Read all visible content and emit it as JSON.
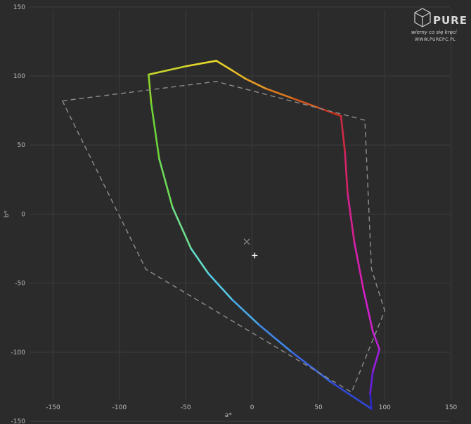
{
  "logo": {
    "brand": "PURE PC",
    "tagline": "wiemy co się kręci",
    "url": "WWW.PUREPC.PL"
  },
  "chart_data": {
    "type": "line",
    "title": "",
    "xlabel": "a*",
    "ylabel": "b*",
    "xlim": [
      -190,
      165
    ],
    "ylim": [
      -152,
      155
    ],
    "x_ticks": [
      -150,
      -100,
      -50,
      0,
      50,
      100,
      150
    ],
    "y_ticks": [
      150,
      100,
      50,
      0,
      -50,
      -100,
      -150
    ],
    "grid": true,
    "series": [
      {
        "style": "solid-rainbow",
        "points": [
          {
            "x": 67,
            "y": 71,
            "color": "#c8301c"
          },
          {
            "x": 50,
            "y": 77,
            "color": "#d4581c"
          },
          {
            "x": 30,
            "y": 84,
            "color": "#dc7a1e"
          },
          {
            "x": 10,
            "y": 91,
            "color": "#e49a22"
          },
          {
            "x": -5,
            "y": 98,
            "color": "#e8b826"
          },
          {
            "x": -15,
            "y": 104,
            "color": "#e6cc28"
          },
          {
            "x": -27,
            "y": 111,
            "color": "#e6d82a"
          },
          {
            "x": -50,
            "y": 107,
            "color": "#c8d42a"
          },
          {
            "x": -78,
            "y": 101,
            "color": "#8ed22c"
          },
          {
            "x": -76,
            "y": 80,
            "color": "#6cd23a"
          },
          {
            "x": -70,
            "y": 40,
            "color": "#6ed858"
          },
          {
            "x": -60,
            "y": 5,
            "color": "#6edc8c"
          },
          {
            "x": -46,
            "y": -25,
            "color": "#62dcc8"
          },
          {
            "x": -33,
            "y": -43,
            "color": "#54c8e4"
          },
          {
            "x": -15,
            "y": -62,
            "color": "#4aaae6"
          },
          {
            "x": 5,
            "y": -80,
            "color": "#4088e6"
          },
          {
            "x": 30,
            "y": -100,
            "color": "#3a66e2"
          },
          {
            "x": 60,
            "y": -122,
            "color": "#3046d8"
          },
          {
            "x": 90,
            "y": -141,
            "color": "#2a28c8"
          },
          {
            "x": 89,
            "y": -130,
            "color": "#6a1edc"
          },
          {
            "x": 91,
            "y": -114,
            "color": "#9a1ee0"
          },
          {
            "x": 96,
            "y": -98,
            "color": "#c020d8"
          },
          {
            "x": 91,
            "y": -85,
            "color": "#d020cc"
          },
          {
            "x": 84,
            "y": -55,
            "color": "#d820b0"
          },
          {
            "x": 77,
            "y": -20,
            "color": "#d82090"
          },
          {
            "x": 72,
            "y": 15,
            "color": "#d42468"
          },
          {
            "x": 70,
            "y": 45,
            "color": "#cc2a44"
          },
          {
            "x": 67,
            "y": 71,
            "color": "#c8301c"
          }
        ]
      },
      {
        "style": "dashed-gray",
        "color": "#8e8e8e",
        "points": [
          {
            "x": -143,
            "y": 82
          },
          {
            "x": -27,
            "y": 96
          },
          {
            "x": 85,
            "y": 68
          },
          {
            "x": 90,
            "y": -40
          },
          {
            "x": 100,
            "y": -70
          },
          {
            "x": 75,
            "y": -129
          },
          {
            "x": -80,
            "y": -40
          },
          {
            "x": -143,
            "y": 82
          }
        ]
      }
    ],
    "markers": [
      {
        "shape": "x",
        "x": -4,
        "y": -20,
        "color": "#8a8a8a"
      },
      {
        "shape": "plus",
        "x": 2,
        "y": -30,
        "color": "#ffffff"
      }
    ]
  }
}
